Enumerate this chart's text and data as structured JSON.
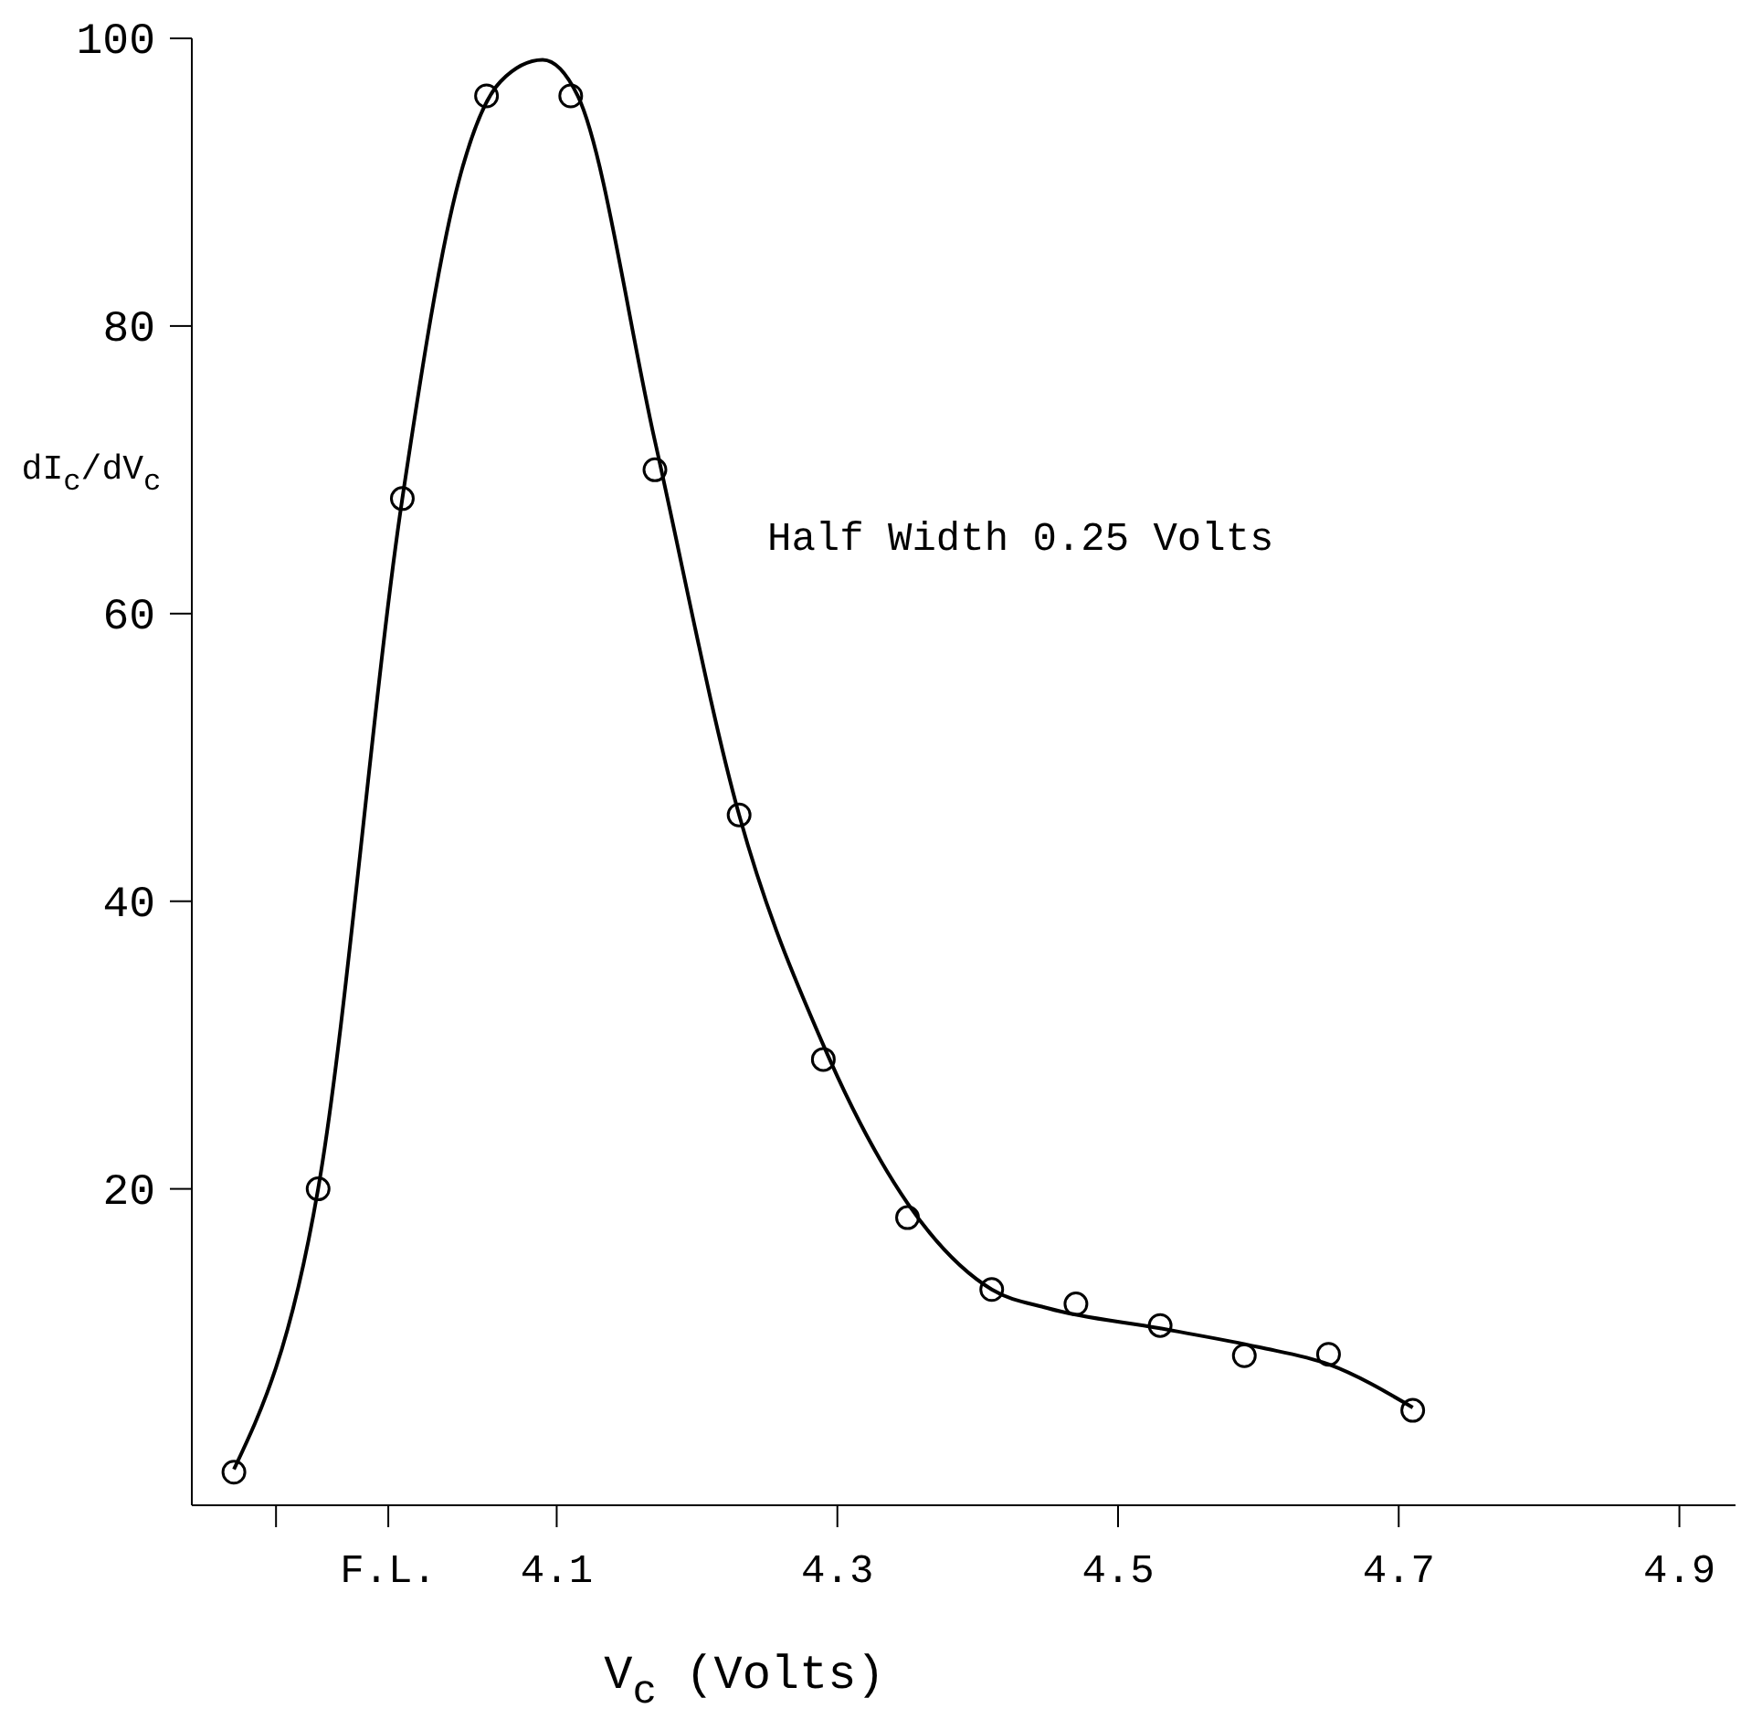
{
  "chart_data": {
    "type": "scatter",
    "xlabel": "V$_{c}$ (Volts)",
    "ylabel": "dI$_{c}$/dV$_{c}$",
    "annotations": [
      "Half Width 0.25 Volts"
    ],
    "xlim": [
      3.84,
      4.94
    ],
    "xticks": [
      {
        "value": 3.9,
        "label": null
      },
      {
        "value": 3.98,
        "label": "F.L."
      },
      4.1,
      4.3,
      4.5,
      4.7,
      4.9
    ],
    "ylim": [
      -2,
      100
    ],
    "yticks": [
      20,
      40,
      60,
      80,
      100
    ],
    "grid": false,
    "series": [
      {
        "color": "#000000",
        "marker": "circle",
        "x": [
          3.87,
          3.93,
          3.99,
          4.05,
          4.11,
          4.17,
          4.23,
          4.29,
          4.35,
          4.41,
          4.47,
          4.53,
          4.59,
          4.65,
          4.71
        ],
        "values": [
          0.3,
          20,
          68,
          96,
          96,
          70,
          46,
          29,
          18,
          13,
          12,
          10.5,
          8.4,
          8.5,
          4.6
        ]
      },
      {
        "type": "line",
        "color": "#000000",
        "marker": "none",
        "line_style": "solid",
        "x": [
          3.87,
          3.93,
          3.99,
          4.03,
          4.06,
          4.09,
          4.115,
          4.17,
          4.23,
          4.29,
          4.35,
          4.41,
          4.45,
          4.53,
          4.6,
          4.65,
          4.71
        ],
        "values": [
          0.5,
          20,
          68,
          90,
          97,
          98.5,
          96,
          72,
          46,
          30,
          19,
          13,
          11.7,
          10.3,
          9,
          7.8,
          4.8
        ]
      }
    ]
  }
}
